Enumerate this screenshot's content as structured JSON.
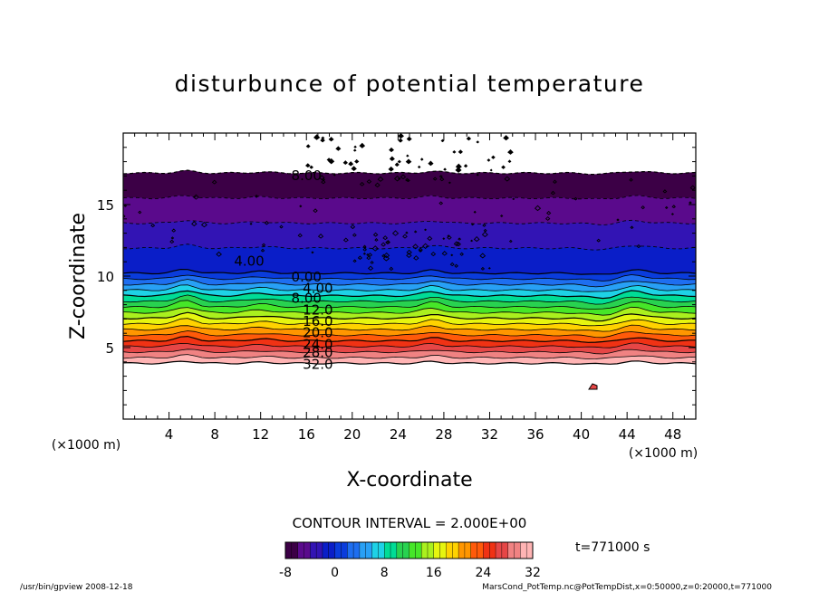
{
  "chart_data": {
    "type": "heatmap",
    "title": "disturbunce of potential temperature",
    "xlabel": "X-coordinate",
    "ylabel": "Z-coordinate",
    "x_unit": "(×1000 m)",
    "x_unit_right": "(×1000 m)",
    "xlim": [
      0,
      50
    ],
    "ylim": [
      0,
      20
    ],
    "x_ticks": [
      4,
      8,
      12,
      16,
      20,
      24,
      28,
      32,
      36,
      40,
      44,
      48
    ],
    "y_ticks": [
      5,
      10,
      15
    ],
    "contour_interval_label": "CONTOUR INTERVAL = 2.000E+00",
    "contour_levels": [
      -8,
      -6,
      -4,
      -2,
      0,
      2,
      4,
      6,
      8,
      10,
      12,
      14,
      16,
      18,
      20,
      22,
      24,
      26,
      28,
      30,
      32
    ],
    "contour_labels": [
      {
        "text": "8.00",
        "x": 16,
        "z": 17.1
      },
      {
        "text": "4.00",
        "x": 11,
        "z": 11.1
      },
      {
        "text": "0.00",
        "x": 16,
        "z": 10.0
      },
      {
        "text": "4.00",
        "x": 17,
        "z": 9.2
      },
      {
        "text": "8.00",
        "x": 16,
        "z": 8.5
      },
      {
        "text": "12.0",
        "x": 17,
        "z": 7.7
      },
      {
        "text": "16.0",
        "x": 17,
        "z": 6.9
      },
      {
        "text": "20.0",
        "x": 17,
        "z": 6.1
      },
      {
        "text": "24.0",
        "x": 17,
        "z": 5.3
      },
      {
        "text": "28.0",
        "x": 17,
        "z": 4.7
      },
      {
        "text": "32.0",
        "x": 17,
        "z": 3.9
      }
    ],
    "colorbar": {
      "min": -8,
      "max": 32,
      "ticks": [
        -8,
        0,
        8,
        16,
        24,
        32
      ]
    },
    "time_label": "t=771000 s",
    "color_stops": [
      "#3c0046",
      "#5a0a8c",
      "#3214b4",
      "#0a1ec8",
      "#0a3cdc",
      "#1e6ef0",
      "#28a0f5",
      "#1ed2e6",
      "#00dc96",
      "#28d250",
      "#46e628",
      "#aaf01e",
      "#e6f50f",
      "#ffd200",
      "#ff9600",
      "#ff5a0a",
      "#f03214",
      "#e64646",
      "#f08282",
      "#ffb4b4"
    ]
  },
  "footer": {
    "left": "/usr/bin/gpview   2008-12-18",
    "right": "MarsCond_PotTemp.nc@PotTempDist,x=0:50000,z=0:20000,t=771000"
  }
}
